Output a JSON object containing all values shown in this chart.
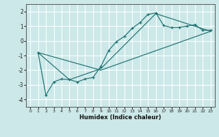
{
  "xlabel": "Humidex (Indice chaleur)",
  "bg_color": "#cce8e8",
  "line_color": "#1a7070",
  "grid_color": "#ffffff",
  "xlim": [
    -0.5,
    23.5
  ],
  "ylim": [
    -4.5,
    2.5
  ],
  "yticks": [
    -4,
    -3,
    -2,
    -1,
    0,
    1,
    2
  ],
  "xticks": [
    0,
    1,
    2,
    3,
    4,
    5,
    6,
    7,
    8,
    9,
    10,
    11,
    12,
    13,
    14,
    15,
    16,
    17,
    18,
    19,
    20,
    21,
    22,
    23
  ],
  "series": {
    "line_curve": {
      "x": [
        1,
        2,
        3,
        4,
        5,
        6,
        7,
        8,
        9,
        10,
        11,
        12,
        13,
        14,
        15,
        16,
        17,
        18,
        19,
        20,
        21,
        22,
        23
      ],
      "y": [
        -0.8,
        -3.7,
        -2.8,
        -2.6,
        -2.65,
        -2.8,
        -2.6,
        -2.5,
        -1.75,
        -0.65,
        -0.05,
        0.3,
        0.85,
        1.25,
        1.8,
        1.9,
        1.05,
        0.9,
        0.92,
        1.0,
        1.1,
        0.72,
        0.72
      ]
    },
    "line_diag1": {
      "x": [
        1,
        9,
        23
      ],
      "y": [
        -0.8,
        -2.0,
        0.65
      ]
    },
    "line_diag2": {
      "x": [
        1,
        5,
        9,
        16,
        23
      ],
      "y": [
        -0.8,
        -2.65,
        -1.9,
        1.85,
        0.65
      ]
    }
  }
}
